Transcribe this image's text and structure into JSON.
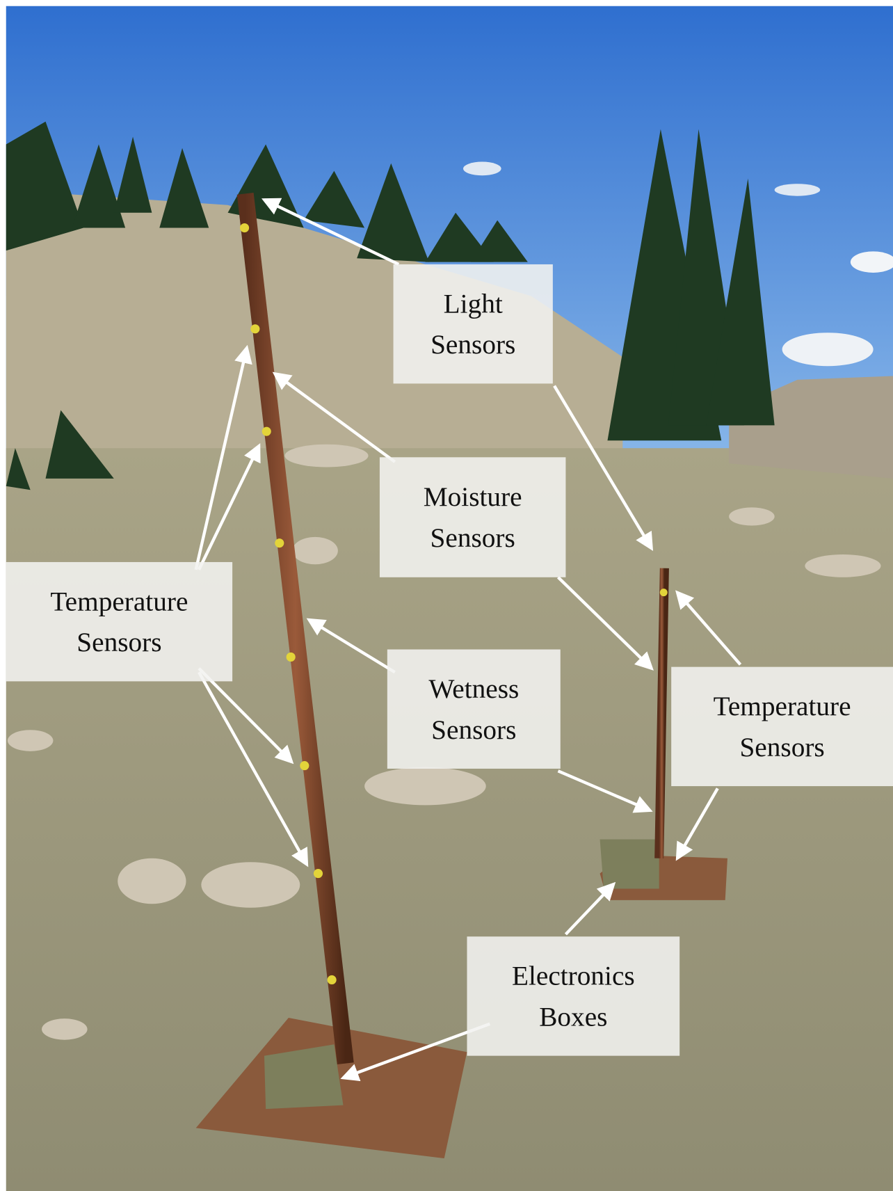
{
  "labels": [
    {
      "lines": [
        "Light",
        "Sensors"
      ]
    },
    {
      "lines": [
        "Moisture",
        "Sensors"
      ]
    },
    {
      "lines": [
        "Temperature",
        "Sensors"
      ]
    },
    {
      "lines": [
        "Wetness",
        "Sensors"
      ]
    },
    {
      "lines": [
        "Temperature",
        "Sensors"
      ]
    },
    {
      "lines": [
        "Electronics",
        "Boxes"
      ]
    }
  ]
}
